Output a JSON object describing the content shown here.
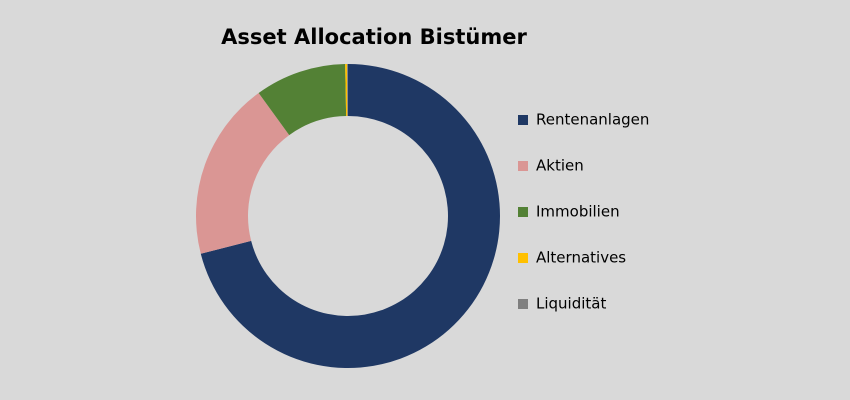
{
  "chart_data": {
    "type": "donut",
    "title": "Asset Allocation Bistümer",
    "categories": [
      "Rentenanlagen",
      "Aktien",
      "Immobilien",
      "Alternatives",
      "Liquidität"
    ],
    "values": [
      71,
      19,
      9.7,
      0.2,
      0.1
    ],
    "colors": [
      "#1f3864",
      "#da9694",
      "#538135",
      "#ffc000",
      "#7f7f7f"
    ],
    "legend": "right"
  }
}
